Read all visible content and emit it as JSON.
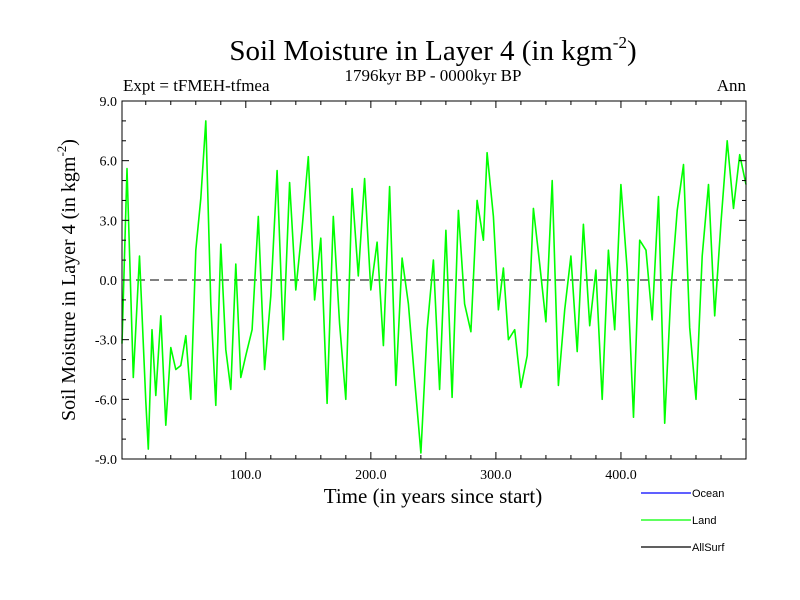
{
  "chart_data": {
    "type": "line",
    "title": "Soil Moisture in Layer 4 (in kgm",
    "title_sup": "-2",
    "title_close": ")",
    "subtitle_left": "Expt = tFMEH-tfmea",
    "subtitle_center": "1796kyr BP - 0000kyr BP",
    "subtitle_right": "Ann",
    "xlabel": "Time (in years since start)",
    "ylabel": "Soil Moisture in Layer 4 (in kgm",
    "ylabel_sup": "-2",
    "ylabel_close": ")",
    "xlim": [
      1,
      500
    ],
    "ylim": [
      -9.0,
      9.0
    ],
    "xticks": [
      100,
      200,
      300,
      400
    ],
    "xtick_labels": [
      "100.0",
      "200.0",
      "300.0",
      "400.0"
    ],
    "yticks": [
      -9,
      -6,
      -3,
      0,
      3,
      6,
      9
    ],
    "ytick_labels": [
      "-9.0",
      "-6.0",
      "-3.0",
      "0.0",
      "3.0",
      "6.0",
      "9.0"
    ],
    "reference_line": 0,
    "series": [
      {
        "name": "Land",
        "color": "#00ff00",
        "x": [
          1,
          5,
          10,
          15,
          20,
          22,
          25,
          28,
          32,
          36,
          40,
          44,
          48,
          52,
          56,
          60,
          64,
          68,
          72,
          76,
          80,
          84,
          88,
          92,
          96,
          100,
          105,
          110,
          115,
          120,
          125,
          130,
          135,
          140,
          145,
          150,
          155,
          160,
          165,
          170,
          175,
          180,
          185,
          190,
          195,
          200,
          205,
          210,
          215,
          220,
          225,
          230,
          235,
          240,
          245,
          250,
          255,
          260,
          265,
          270,
          275,
          280,
          285,
          290,
          293,
          298,
          302,
          306,
          310,
          315,
          320,
          325,
          330,
          335,
          340,
          345,
          350,
          355,
          360,
          365,
          370,
          375,
          380,
          385,
          390,
          395,
          400,
          405,
          410,
          415,
          420,
          425,
          430,
          435,
          440,
          445,
          450,
          455,
          460,
          465,
          470,
          475,
          480,
          485,
          490,
          495,
          500
        ],
        "values": [
          -3.2,
          5.6,
          -4.9,
          1.2,
          -6.1,
          -8.5,
          -2.5,
          -5.8,
          -1.8,
          -7.3,
          -3.4,
          -4.5,
          -4.3,
          -2.8,
          -6.0,
          1.5,
          4.1,
          8.0,
          -1.2,
          -6.3,
          1.8,
          -3.5,
          -5.5,
          0.8,
          -4.9,
          -3.8,
          -2.5,
          3.2,
          -4.5,
          -0.8,
          5.5,
          -3.0,
          4.9,
          -0.5,
          2.6,
          6.2,
          -1.0,
          2.1,
          -6.2,
          3.2,
          -2.2,
          -6.0,
          4.6,
          0.2,
          5.1,
          -0.5,
          1.9,
          -3.3,
          4.7,
          -5.3,
          1.1,
          -1.2,
          -5.0,
          -8.7,
          -2.5,
          1.0,
          -5.5,
          2.5,
          -5.9,
          3.5,
          -1.2,
          -2.6,
          4.0,
          2.0,
          6.4,
          3.2,
          -1.5,
          0.6,
          -3.0,
          -2.5,
          -5.4,
          -3.8,
          3.6,
          0.8,
          -2.1,
          5.0,
          -5.3,
          -1.5,
          1.2,
          -3.6,
          2.8,
          -2.3,
          0.5,
          -6.0,
          1.5,
          -2.5,
          4.8,
          0.5,
          -6.9,
          2.0,
          1.5,
          -2.0,
          4.2,
          -7.2,
          -0.5,
          3.5,
          5.8,
          -2.4,
          -6.0,
          1.2,
          4.8,
          -1.8,
          2.9,
          7.0,
          3.6,
          6.3,
          4.8
        ]
      }
    ],
    "legend": [
      {
        "name": "Ocean",
        "color": "#0000ff"
      },
      {
        "name": "Land",
        "color": "#00ff00"
      },
      {
        "name": "AllSurf",
        "color": "#000000"
      }
    ]
  }
}
